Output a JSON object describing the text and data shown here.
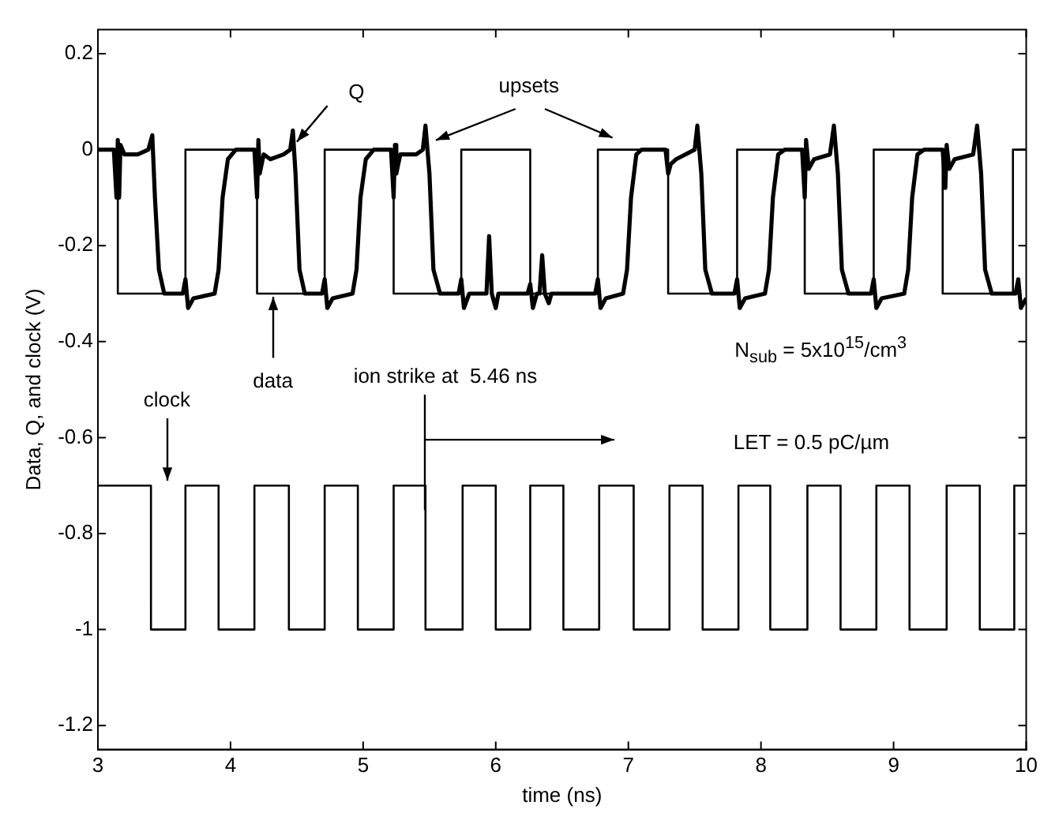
{
  "chart_data": {
    "type": "line",
    "xlabel": "time (ns)",
    "ylabel": "Data, Q, and clock (V)",
    "xlim": [
      3,
      10
    ],
    "xticks": [
      3,
      4,
      5,
      6,
      7,
      8,
      9,
      10
    ],
    "ylim": [
      -1.25,
      0.25
    ],
    "yticks": [
      0.2,
      0,
      -0.2,
      -0.4,
      -0.6,
      -0.8,
      -1,
      -1.2
    ],
    "grid": false,
    "legend": false,
    "marker": "none",
    "line_style": "solid",
    "series": [
      {
        "type": "step",
        "color": "#000000",
        "x": [
          3,
          3.15,
          3.66,
          4.2,
          4.71,
          5.23,
          5.74,
          6.26,
          6.77,
          7.3,
          7.82,
          8.33,
          8.85,
          9.37,
          9.9,
          10
        ],
        "values": [
          0,
          -0.3,
          0,
          -0.3,
          0,
          -0.3,
          0,
          -0.3,
          0,
          -0.3,
          0,
          -0.3,
          0,
          -0.3,
          0,
          0
        ]
      },
      {
        "type": "step",
        "color": "#000000",
        "x": [
          3,
          3.4,
          3.66,
          3.91,
          4.18,
          4.44,
          4.71,
          4.96,
          5.23,
          5.47,
          5.75,
          6,
          6.26,
          6.51,
          6.78,
          7.04,
          7.31,
          7.56,
          7.83,
          8.07,
          8.35,
          8.6,
          8.87,
          9.12,
          9.4,
          9.65,
          9.91,
          10
        ],
        "values": [
          -0.7,
          -1,
          -0.7,
          -1,
          -0.7,
          -1,
          -0.7,
          -1,
          -0.7,
          -1,
          -0.7,
          -1,
          -0.7,
          -1,
          -0.7,
          -1,
          -0.7,
          -1,
          -0.7,
          -1,
          -0.7,
          -1,
          -0.7,
          -1,
          -0.7,
          -1,
          -0.7,
          -0.7
        ]
      },
      {
        "color": "#000000",
        "x": [
          3,
          3.12,
          3.14,
          3.15,
          3.16,
          3.17,
          3.2,
          3.3,
          3.38,
          3.41,
          3.43,
          3.46,
          3.5,
          3.64,
          3.66,
          3.68,
          3.72,
          3.88,
          3.91,
          3.94,
          3.98,
          4.04,
          4.18,
          4.2,
          4.21,
          4.22,
          4.25,
          4.3,
          4.4,
          4.45,
          4.47,
          4.49,
          4.52,
          4.56,
          4.69,
          4.71,
          4.73,
          4.77,
          4.92,
          4.95,
          4.98,
          5.02,
          5.08,
          5.21,
          5.23,
          5.24,
          5.25,
          5.28,
          5.4,
          5.45,
          5.47,
          5.5,
          5.53,
          5.58,
          5.72,
          5.74,
          5.76,
          5.8,
          5.93,
          5.95,
          5.97,
          6,
          6.02,
          6.24,
          6.26,
          6.28,
          6.31,
          6.33,
          6.35,
          6.37,
          6.4,
          6.42,
          6.75,
          6.77,
          6.79,
          6.83,
          6.96,
          6.99,
          7.02,
          7.06,
          7.1,
          7.28,
          7.3,
          7.32,
          7.36,
          7.5,
          7.52,
          7.55,
          7.58,
          7.63,
          7.8,
          7.82,
          7.84,
          7.88,
          8.03,
          8.06,
          8.09,
          8.13,
          8.18,
          8.31,
          8.33,
          8.34,
          8.36,
          8.4,
          8.52,
          8.55,
          8.58,
          8.61,
          8.66,
          8.83,
          8.85,
          8.87,
          8.91,
          9.08,
          9.11,
          9.14,
          9.18,
          9.23,
          9.37,
          9.39,
          9.4,
          9.42,
          9.46,
          9.6,
          9.63,
          9.66,
          9.69,
          9.74,
          9.92,
          9.94,
          9.96,
          10
        ],
        "values": [
          0,
          0,
          -0.1,
          0.02,
          -0.1,
          0.01,
          -0.01,
          -0.01,
          0,
          0.03,
          -0.1,
          -0.25,
          -0.3,
          -0.3,
          -0.27,
          -0.33,
          -0.31,
          -0.3,
          -0.25,
          -0.1,
          -0.02,
          0,
          0,
          -0.1,
          0.02,
          -0.05,
          -0.01,
          -0.02,
          -0.01,
          0,
          0.04,
          -0.05,
          -0.25,
          -0.3,
          -0.3,
          -0.27,
          -0.33,
          -0.31,
          -0.3,
          -0.25,
          -0.1,
          -0.02,
          0,
          0,
          -0.1,
          0.01,
          -0.05,
          -0.01,
          -0.01,
          0,
          0.05,
          -0.05,
          -0.25,
          -0.3,
          -0.3,
          -0.27,
          -0.33,
          -0.3,
          -0.3,
          -0.18,
          -0.3,
          -0.33,
          -0.3,
          -0.3,
          -0.28,
          -0.33,
          -0.3,
          -0.3,
          -0.22,
          -0.3,
          -0.32,
          -0.3,
          -0.3,
          -0.27,
          -0.33,
          -0.31,
          -0.3,
          -0.25,
          -0.1,
          -0.01,
          0,
          0,
          -0.05,
          -0.03,
          -0.02,
          0,
          0.05,
          -0.05,
          -0.25,
          -0.3,
          -0.3,
          -0.27,
          -0.33,
          -0.31,
          -0.3,
          -0.25,
          -0.1,
          -0.01,
          0,
          0,
          -0.1,
          0.02,
          -0.04,
          -0.02,
          -0.01,
          0.05,
          -0.05,
          -0.25,
          -0.3,
          -0.3,
          -0.27,
          -0.33,
          -0.31,
          -0.3,
          -0.25,
          -0.1,
          -0.01,
          0,
          0,
          -0.08,
          0.01,
          -0.04,
          -0.02,
          -0.01,
          0.05,
          -0.05,
          -0.25,
          -0.3,
          -0.3,
          -0.27,
          -0.33,
          -0.31
        ]
      }
    ],
    "annotations": [
      "Q",
      "upsets",
      {
        "text": "data",
        "x": 4.32,
        "y": -0.3
      },
      "clock",
      {
        "text": "ion strike at  5.46 ns",
        "x": 5.46,
        "y": -0.75
      },
      "N$_{sub}$ = 5x10$^{15}$/cm$^{3}$",
      "LET = 0.5 pC/µm"
    ]
  }
}
